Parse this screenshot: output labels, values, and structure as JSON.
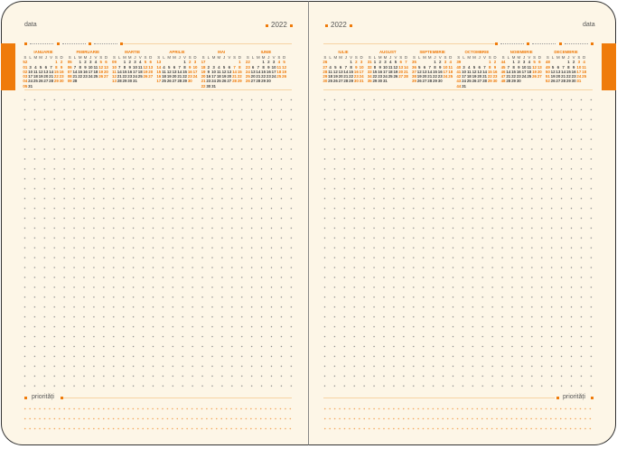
{
  "year": "2022",
  "date_label": "data",
  "priorities_label": "priorități",
  "colors": {
    "accent": "#ef7b0b",
    "paper": "#fdf6e7",
    "text": "#555555"
  },
  "calendar_header": [
    "S",
    "L",
    "M",
    "M",
    "J",
    "V",
    "S",
    "D"
  ],
  "left_months": [
    {
      "name": "IANUARIE",
      "first_weekday": 5,
      "days": 31,
      "weeks": [
        "52",
        "01",
        "02",
        "03",
        "04",
        "05"
      ]
    },
    {
      "name": "FEBRUARIE",
      "first_weekday": 1,
      "days": 28,
      "weeks": [
        "05",
        "06",
        "07",
        "08",
        "09"
      ]
    },
    {
      "name": "MARTIE",
      "first_weekday": 1,
      "days": 31,
      "weeks": [
        "09",
        "10",
        "11",
        "12",
        "13"
      ]
    },
    {
      "name": "APRILIE",
      "first_weekday": 4,
      "days": 30,
      "weeks": [
        "13",
        "14",
        "15",
        "16",
        "17"
      ]
    },
    {
      "name": "MAI",
      "first_weekday": 6,
      "days": 31,
      "weeks": [
        "17",
        "18",
        "19",
        "20",
        "21",
        "22"
      ]
    },
    {
      "name": "IUNIE",
      "first_weekday": 2,
      "days": 30,
      "weeks": [
        "22",
        "23",
        "24",
        "25",
        "26"
      ]
    }
  ],
  "right_months": [
    {
      "name": "IULIE",
      "first_weekday": 4,
      "days": 31,
      "weeks": [
        "26",
        "27",
        "28",
        "29",
        "30"
      ]
    },
    {
      "name": "AUGUST",
      "first_weekday": 0,
      "days": 31,
      "weeks": [
        "31",
        "32",
        "33",
        "34",
        "35"
      ]
    },
    {
      "name": "SEPTEMBRIE",
      "first_weekday": 3,
      "days": 30,
      "weeks": [
        "35",
        "36",
        "37",
        "38",
        "39"
      ]
    },
    {
      "name": "OCTOMBRIE",
      "first_weekday": 5,
      "days": 31,
      "weeks": [
        "39",
        "40",
        "41",
        "42",
        "43",
        "44"
      ]
    },
    {
      "name": "NOIEMBRIE",
      "first_weekday": 1,
      "days": 30,
      "weeks": [
        "44",
        "45",
        "46",
        "47",
        "48"
      ]
    },
    {
      "name": "DECEMBRIE",
      "first_weekday": 3,
      "days": 31,
      "weeks": [
        "48",
        "49",
        "50",
        "51",
        "52"
      ]
    }
  ]
}
